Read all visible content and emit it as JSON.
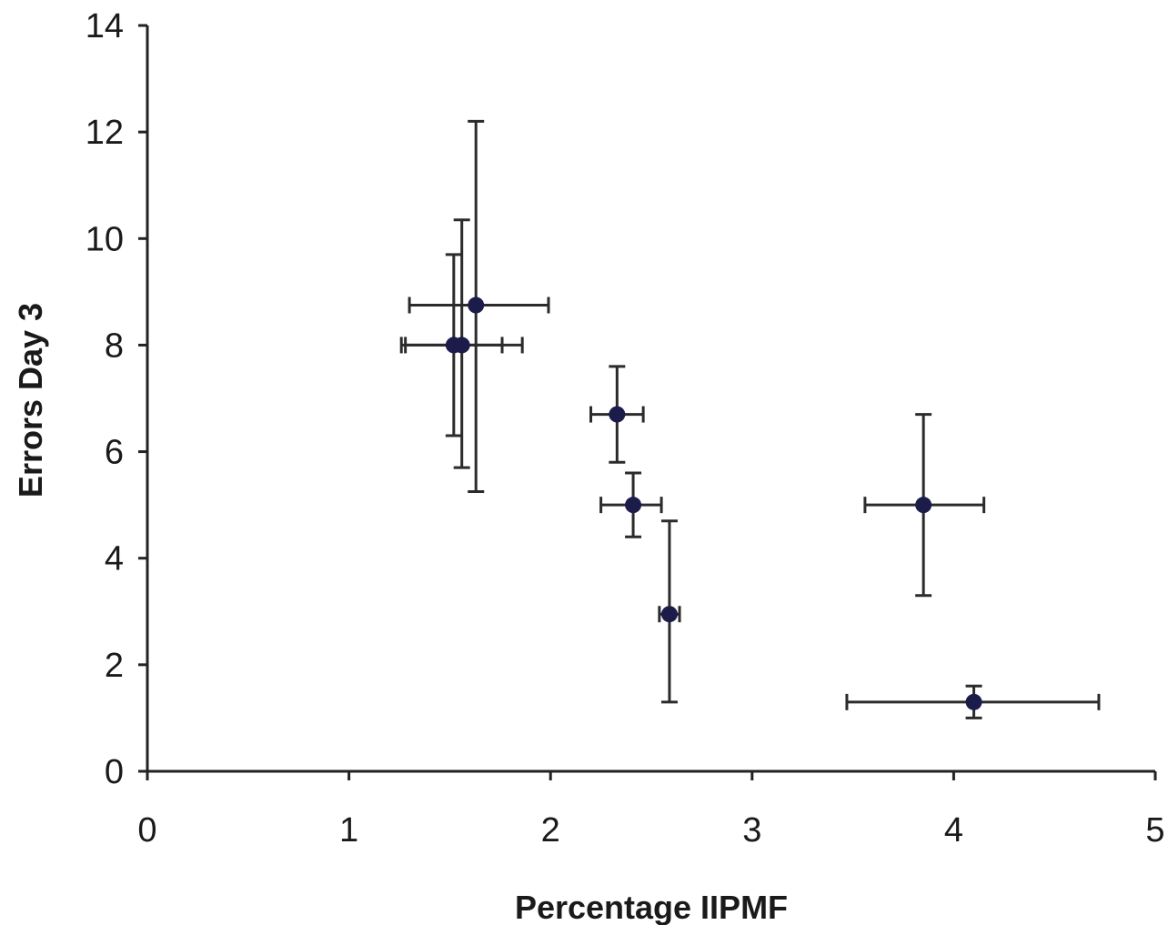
{
  "chart_data": {
    "type": "scatter",
    "xlabel": "Percentage IIPMF",
    "ylabel": "Errors Day 3",
    "xlim": [
      0,
      5
    ],
    "ylim": [
      0,
      14
    ],
    "x_ticks": [
      "0",
      "1",
      "2",
      "3",
      "4",
      "5"
    ],
    "y_ticks": [
      "0",
      "2",
      "4",
      "6",
      "8",
      "10",
      "12",
      "14"
    ],
    "grid": false,
    "legend": "none",
    "marker_color": "#1c1c4a",
    "errorbar_color": "#2b2b2b",
    "points": [
      {
        "x": 1.52,
        "y": 8.0,
        "x_err": [
          1.26,
          1.76
        ],
        "y_err": [
          6.3,
          9.7
        ]
      },
      {
        "x": 1.56,
        "y": 8.0,
        "x_err": [
          1.28,
          1.86
        ],
        "y_err": [
          5.7,
          10.35
        ]
      },
      {
        "x": 1.63,
        "y": 8.75,
        "x_err": [
          1.3,
          1.99
        ],
        "y_err": [
          5.25,
          12.2
        ]
      },
      {
        "x": 2.33,
        "y": 6.7,
        "x_err": [
          2.2,
          2.46
        ],
        "y_err": [
          5.8,
          7.6
        ]
      },
      {
        "x": 2.41,
        "y": 5.0,
        "x_err": [
          2.25,
          2.55
        ],
        "y_err": [
          4.4,
          5.6
        ]
      },
      {
        "x": 2.59,
        "y": 2.95,
        "x_err": [
          2.54,
          2.64
        ],
        "y_err": [
          1.3,
          4.7
        ]
      },
      {
        "x": 3.85,
        "y": 5.0,
        "x_err": [
          3.56,
          4.15
        ],
        "y_err": [
          3.3,
          6.7
        ]
      },
      {
        "x": 4.1,
        "y": 1.3,
        "x_err": [
          3.47,
          4.72
        ],
        "y_err": [
          1.0,
          1.6
        ]
      }
    ]
  }
}
